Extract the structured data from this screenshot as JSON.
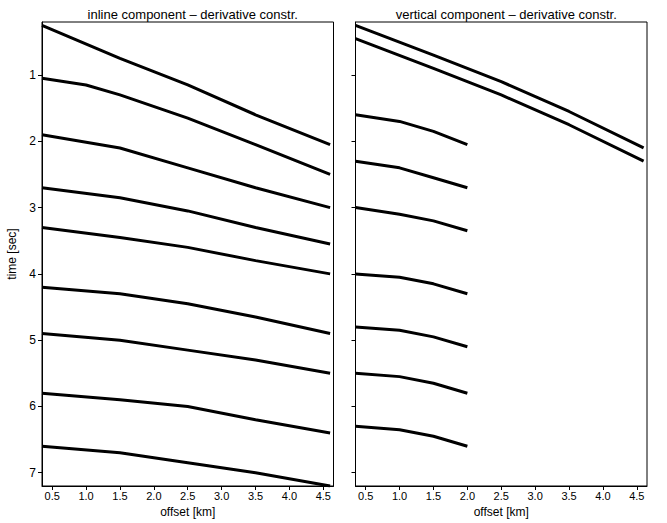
{
  "chart_data": [
    {
      "type": "line",
      "title": "inline component – derivative constr.",
      "xlabel": "offset [km]",
      "ylabel": "time [sec]",
      "xlim": [
        0.35,
        4.65
      ],
      "xticks": [
        0.5,
        {
          "value": 1,
          "label": "1.0"
        },
        1.5,
        {
          "value": 2,
          "label": "2.0"
        },
        2.5,
        {
          "value": 3,
          "label": "3.0"
        },
        3.5,
        {
          "value": 4,
          "label": "4.0"
        },
        4.5
      ],
      "ylim": [
        0.2,
        7.2
      ],
      "yticks": [
        1,
        2,
        3,
        4,
        5,
        6,
        7
      ],
      "grid": false,
      "series": [
        {
          "color": "#000000",
          "x": [
            0.35,
            1.5,
            2.5,
            3.5,
            4.6
          ],
          "values": [
            0.25,
            0.75,
            1.15,
            1.6,
            2.05
          ]
        },
        {
          "color": "#000000",
          "x": [
            0.35,
            1.0,
            1.5,
            2.5,
            3.5,
            4.6
          ],
          "values": [
            1.05,
            1.15,
            1.3,
            1.65,
            2.05,
            2.5
          ]
        },
        {
          "color": "#000000",
          "x": [
            0.35,
            1.5,
            2.5,
            3.5,
            4.6
          ],
          "values": [
            1.9,
            2.1,
            2.4,
            2.7,
            3.0
          ]
        },
        {
          "color": "#000000",
          "x": [
            0.35,
            1.5,
            2.5,
            3.5,
            4.6
          ],
          "values": [
            2.7,
            2.85,
            3.05,
            3.3,
            3.55
          ]
        },
        {
          "color": "#000000",
          "x": [
            0.35,
            1.5,
            2.5,
            3.5,
            4.6
          ],
          "values": [
            3.3,
            3.45,
            3.6,
            3.8,
            4.0
          ]
        },
        {
          "color": "#000000",
          "x": [
            0.35,
            1.5,
            2.5,
            3.5,
            4.6
          ],
          "values": [
            4.2,
            4.3,
            4.45,
            4.65,
            4.9
          ]
        },
        {
          "color": "#000000",
          "x": [
            0.35,
            1.5,
            2.5,
            3.5,
            4.6
          ],
          "values": [
            4.9,
            5.0,
            5.15,
            5.3,
            5.5
          ]
        },
        {
          "color": "#000000",
          "x": [
            0.35,
            1.5,
            2.5,
            3.5,
            4.6
          ],
          "values": [
            5.8,
            5.9,
            6.0,
            6.2,
            6.4
          ]
        },
        {
          "color": "#000000",
          "x": [
            0.35,
            1.5,
            2.5,
            3.5,
            4.6
          ],
          "values": [
            6.6,
            6.7,
            6.85,
            7.0,
            7.2
          ]
        }
      ]
    },
    {
      "type": "line",
      "title": "vertical component – derivative constr.",
      "xlabel": "offset [km]",
      "xlim": [
        0.35,
        4.65
      ],
      "xticks": [
        0.5,
        {
          "value": 1,
          "label": "1.0"
        },
        1.5,
        {
          "value": 2,
          "label": "2.0"
        },
        2.5,
        {
          "value": 3,
          "label": "3.0"
        },
        3.5,
        {
          "value": 4,
          "label": "4.0"
        },
        4.5
      ],
      "ylim": [
        0.2,
        7.2
      ],
      "yticks": [
        1,
        2,
        3,
        4,
        5,
        6,
        7
      ],
      "grid": false,
      "tick_labels": "x",
      "series": [
        {
          "color": "#000000",
          "x": [
            0.35,
            1.5,
            2.5,
            3.5,
            4.6
          ],
          "values": [
            0.25,
            0.7,
            1.1,
            1.55,
            2.1
          ]
        },
        {
          "color": "#000000",
          "x": [
            0.35,
            1.5,
            2.5,
            3.5,
            4.6
          ],
          "values": [
            0.45,
            0.9,
            1.3,
            1.75,
            2.3
          ]
        },
        {
          "color": "#000000",
          "x": [
            0.35,
            1.0,
            1.5,
            2.0
          ],
          "values": [
            1.6,
            1.7,
            1.85,
            2.05
          ]
        },
        {
          "color": "#000000",
          "x": [
            0.35,
            1.0,
            1.5,
            2.0
          ],
          "values": [
            2.3,
            2.4,
            2.55,
            2.7
          ]
        },
        {
          "color": "#000000",
          "x": [
            0.35,
            1.0,
            1.5,
            2.0
          ],
          "values": [
            3.0,
            3.1,
            3.2,
            3.35
          ]
        },
        {
          "color": "#000000",
          "x": [
            0.35,
            1.0,
            1.5,
            2.0
          ],
          "values": [
            4.0,
            4.05,
            4.15,
            4.3
          ]
        },
        {
          "color": "#000000",
          "x": [
            0.35,
            1.0,
            1.5,
            2.0
          ],
          "values": [
            4.8,
            4.85,
            4.95,
            5.1
          ]
        },
        {
          "color": "#000000",
          "x": [
            0.35,
            1.0,
            1.5,
            2.0
          ],
          "values": [
            5.5,
            5.55,
            5.65,
            5.8
          ]
        },
        {
          "color": "#000000",
          "x": [
            0.35,
            1.0,
            1.5,
            2.0
          ],
          "values": [
            6.3,
            6.35,
            6.45,
            6.6
          ]
        }
      ]
    }
  ]
}
